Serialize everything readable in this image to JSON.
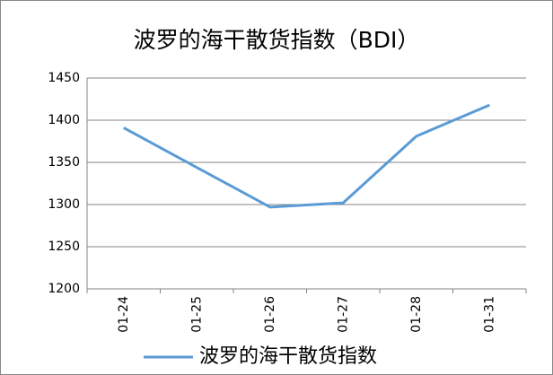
{
  "chart_data": {
    "type": "line",
    "title": "波罗的海干散货指数（BDI）",
    "categories": [
      "01-24",
      "01-25",
      "01-26",
      "01-27",
      "01-28",
      "01-31"
    ],
    "series": [
      {
        "name": "波罗的海干散货指数",
        "color": "#5b9bd5",
        "values": [
          1391,
          1344,
          1297,
          1302,
          1381,
          1418
        ]
      }
    ],
    "ylim": [
      1200,
      1450
    ],
    "yticks": [
      1200,
      1250,
      1300,
      1350,
      1400,
      1450
    ],
    "grid": true,
    "legend": "bottom"
  }
}
